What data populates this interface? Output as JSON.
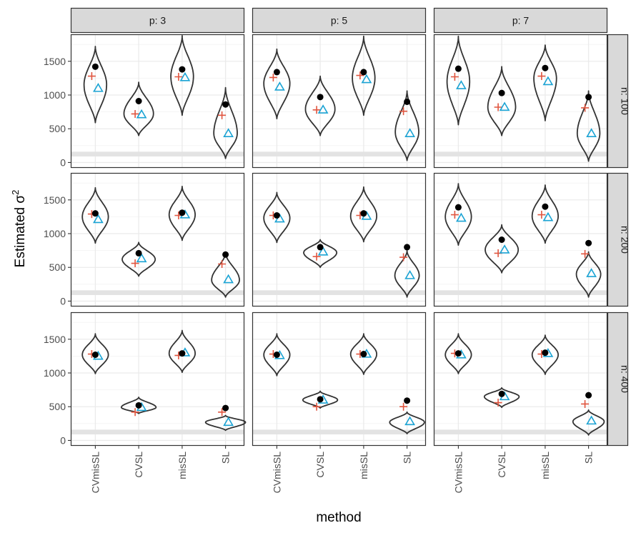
{
  "chart_data": {
    "type": "violin",
    "ylabel_base": "Estimated σ",
    "ylabel_sup": "2",
    "xlabel": "method",
    "categories": [
      "CVmisSL",
      "CVSL",
      "misSL",
      "SL"
    ],
    "yticks": [
      0,
      500,
      1000,
      1500
    ],
    "ylim": [
      -80,
      1900
    ],
    "col_facet_labels": [
      "p: 3",
      "p: 5",
      "p: 7"
    ],
    "row_facet_labels": [
      "n: 100",
      "n: 200",
      "n: 400"
    ],
    "reference_band": [
      90,
      160
    ],
    "series_legend": {
      "dot": "black filled circle",
      "plus": "red plus",
      "triangle": "blue open triangle"
    },
    "colors": {
      "violin": "#333333",
      "dot": "#000000",
      "plus": "#e0553f",
      "triangle": "#1aa3d4",
      "strip_bg": "#d9d9d9",
      "band": "#e3e3e3",
      "grid": "#ebebeb",
      "frame": "#333333"
    },
    "panels": [
      {
        "col": 0,
        "row": 0,
        "violins": [
          {
            "min": 590,
            "max": 1720,
            "mode": 1150,
            "width": 0.26,
            "dot": 1420,
            "plus": 1280,
            "triangle": 1100
          },
          {
            "min": 400,
            "max": 1190,
            "mode": 720,
            "width": 0.34,
            "dot": 910,
            "plus": 720,
            "triangle": 710
          },
          {
            "min": 700,
            "max": 1880,
            "mode": 1270,
            "width": 0.26,
            "dot": 1380,
            "plus": 1270,
            "triangle": 1260
          },
          {
            "min": 60,
            "max": 1110,
            "mode": 430,
            "width": 0.27,
            "dot": 860,
            "plus": 700,
            "triangle": 430
          }
        ]
      },
      {
        "col": 1,
        "row": 0,
        "violins": [
          {
            "min": 650,
            "max": 1680,
            "mode": 1170,
            "width": 0.3,
            "dot": 1340,
            "plus": 1260,
            "triangle": 1120
          },
          {
            "min": 400,
            "max": 1280,
            "mode": 790,
            "width": 0.34,
            "dot": 970,
            "plus": 780,
            "triangle": 780
          },
          {
            "min": 700,
            "max": 1870,
            "mode": 1250,
            "width": 0.26,
            "dot": 1340,
            "plus": 1290,
            "triangle": 1230
          },
          {
            "min": 30,
            "max": 1060,
            "mode": 450,
            "width": 0.27,
            "dot": 900,
            "plus": 760,
            "triangle": 430
          }
        ]
      },
      {
        "col": 2,
        "row": 0,
        "violins": [
          {
            "min": 560,
            "max": 1870,
            "mode": 1200,
            "width": 0.26,
            "dot": 1390,
            "plus": 1270,
            "triangle": 1140
          },
          {
            "min": 400,
            "max": 1420,
            "mode": 820,
            "width": 0.32,
            "dot": 1030,
            "plus": 820,
            "triangle": 820
          },
          {
            "min": 620,
            "max": 1740,
            "mode": 1250,
            "width": 0.26,
            "dot": 1400,
            "plus": 1280,
            "triangle": 1200
          },
          {
            "min": 20,
            "max": 1060,
            "mode": 430,
            "width": 0.26,
            "dot": 970,
            "plus": 810,
            "triangle": 430
          }
        ]
      },
      {
        "col": 0,
        "row": 1,
        "violins": [
          {
            "min": 860,
            "max": 1680,
            "mode": 1250,
            "width": 0.3,
            "dot": 1300,
            "plus": 1290,
            "triangle": 1210
          },
          {
            "min": 370,
            "max": 870,
            "mode": 620,
            "width": 0.38,
            "dot": 710,
            "plus": 560,
            "triangle": 630
          },
          {
            "min": 900,
            "max": 1700,
            "mode": 1280,
            "width": 0.3,
            "dot": 1310,
            "plus": 1270,
            "triangle": 1280
          },
          {
            "min": 60,
            "max": 720,
            "mode": 310,
            "width": 0.32,
            "dot": 690,
            "plus": 550,
            "triangle": 320
          }
        ]
      },
      {
        "col": 1,
        "row": 1,
        "violins": [
          {
            "min": 870,
            "max": 1610,
            "mode": 1230,
            "width": 0.3,
            "dot": 1270,
            "plus": 1270,
            "triangle": 1220
          },
          {
            "min": 500,
            "max": 910,
            "mode": 720,
            "width": 0.38,
            "dot": 800,
            "plus": 660,
            "triangle": 730
          },
          {
            "min": 880,
            "max": 1690,
            "mode": 1260,
            "width": 0.3,
            "dot": 1300,
            "plus": 1270,
            "triangle": 1260
          },
          {
            "min": 60,
            "max": 750,
            "mode": 380,
            "width": 0.28,
            "dot": 800,
            "plus": 650,
            "triangle": 380
          }
        ]
      },
      {
        "col": 2,
        "row": 1,
        "violins": [
          {
            "min": 830,
            "max": 1740,
            "mode": 1250,
            "width": 0.3,
            "dot": 1390,
            "plus": 1280,
            "triangle": 1230
          },
          {
            "min": 420,
            "max": 1130,
            "mode": 760,
            "width": 0.38,
            "dot": 910,
            "plus": 710,
            "triangle": 760
          },
          {
            "min": 860,
            "max": 1720,
            "mode": 1260,
            "width": 0.3,
            "dot": 1400,
            "plus": 1280,
            "triangle": 1240
          },
          {
            "min": 60,
            "max": 730,
            "mode": 400,
            "width": 0.28,
            "dot": 860,
            "plus": 700,
            "triangle": 410
          }
        ]
      },
      {
        "col": 0,
        "row": 2,
        "violins": [
          {
            "min": 990,
            "max": 1580,
            "mode": 1270,
            "width": 0.3,
            "dot": 1270,
            "plus": 1280,
            "triangle": 1250
          },
          {
            "min": 400,
            "max": 640,
            "mode": 490,
            "width": 0.4,
            "dot": 520,
            "plus": 420,
            "triangle": 490
          },
          {
            "min": 1010,
            "max": 1630,
            "mode": 1290,
            "width": 0.3,
            "dot": 1290,
            "plus": 1260,
            "triangle": 1300
          },
          {
            "min": 150,
            "max": 370,
            "mode": 270,
            "width": 0.46,
            "dot": 480,
            "plus": 420,
            "triangle": 270
          }
        ]
      },
      {
        "col": 1,
        "row": 2,
        "violins": [
          {
            "min": 960,
            "max": 1580,
            "mode": 1270,
            "width": 0.3,
            "dot": 1270,
            "plus": 1280,
            "triangle": 1260
          },
          {
            "min": 480,
            "max": 730,
            "mode": 600,
            "width": 0.4,
            "dot": 610,
            "plus": 500,
            "triangle": 600
          },
          {
            "min": 980,
            "max": 1580,
            "mode": 1280,
            "width": 0.3,
            "dot": 1280,
            "plus": 1280,
            "triangle": 1280
          },
          {
            "min": 100,
            "max": 420,
            "mode": 270,
            "width": 0.4,
            "dot": 590,
            "plus": 500,
            "triangle": 280
          }
        ]
      },
      {
        "col": 2,
        "row": 2,
        "violins": [
          {
            "min": 990,
            "max": 1580,
            "mode": 1270,
            "width": 0.3,
            "dot": 1290,
            "plus": 1290,
            "triangle": 1270
          },
          {
            "min": 490,
            "max": 780,
            "mode": 650,
            "width": 0.4,
            "dot": 690,
            "plus": 560,
            "triangle": 650
          },
          {
            "min": 980,
            "max": 1560,
            "mode": 1270,
            "width": 0.3,
            "dot": 1300,
            "plus": 1280,
            "triangle": 1290
          },
          {
            "min": 80,
            "max": 450,
            "mode": 280,
            "width": 0.36,
            "dot": 670,
            "plus": 540,
            "triangle": 290
          }
        ]
      }
    ]
  }
}
